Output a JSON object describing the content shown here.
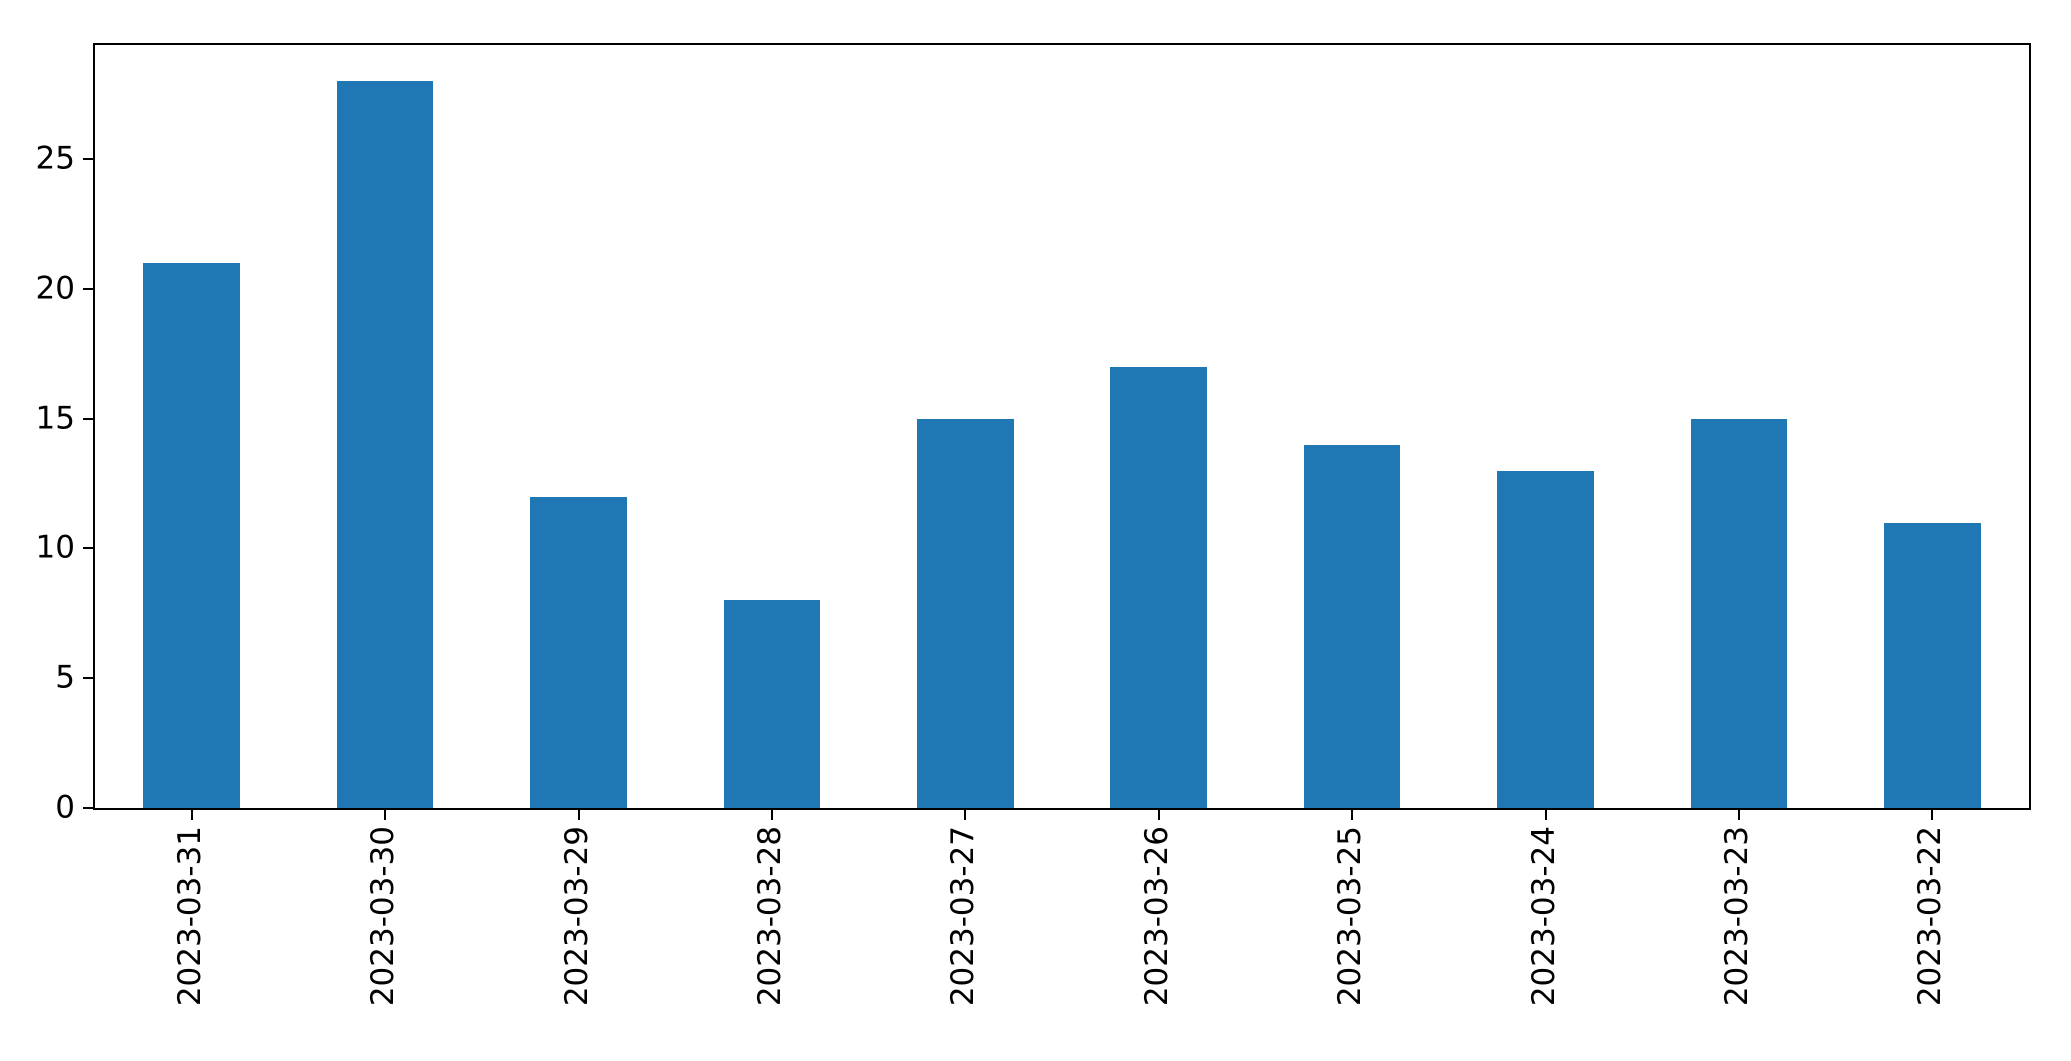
{
  "chart_data": {
    "type": "bar",
    "title": "",
    "xlabel": "",
    "ylabel": "",
    "categories": [
      "2023-03-31",
      "2023-03-30",
      "2023-03-29",
      "2023-03-28",
      "2023-03-27",
      "2023-03-26",
      "2023-03-25",
      "2023-03-24",
      "2023-03-23",
      "2023-03-22"
    ],
    "values": [
      21,
      28,
      12,
      8,
      15,
      17,
      14,
      13,
      15,
      11
    ],
    "yticks": [
      "0",
      "5",
      "10",
      "15",
      "20",
      "25"
    ],
    "ytick_values": [
      0,
      5,
      10,
      15,
      20,
      25
    ],
    "ylim": [
      0,
      29.4
    ],
    "bar_color": "#1f77b4",
    "axis_color": "#000000",
    "background_color": "#ffffff",
    "grid": false,
    "legend": null,
    "x_tick_rotation_deg": 90
  }
}
